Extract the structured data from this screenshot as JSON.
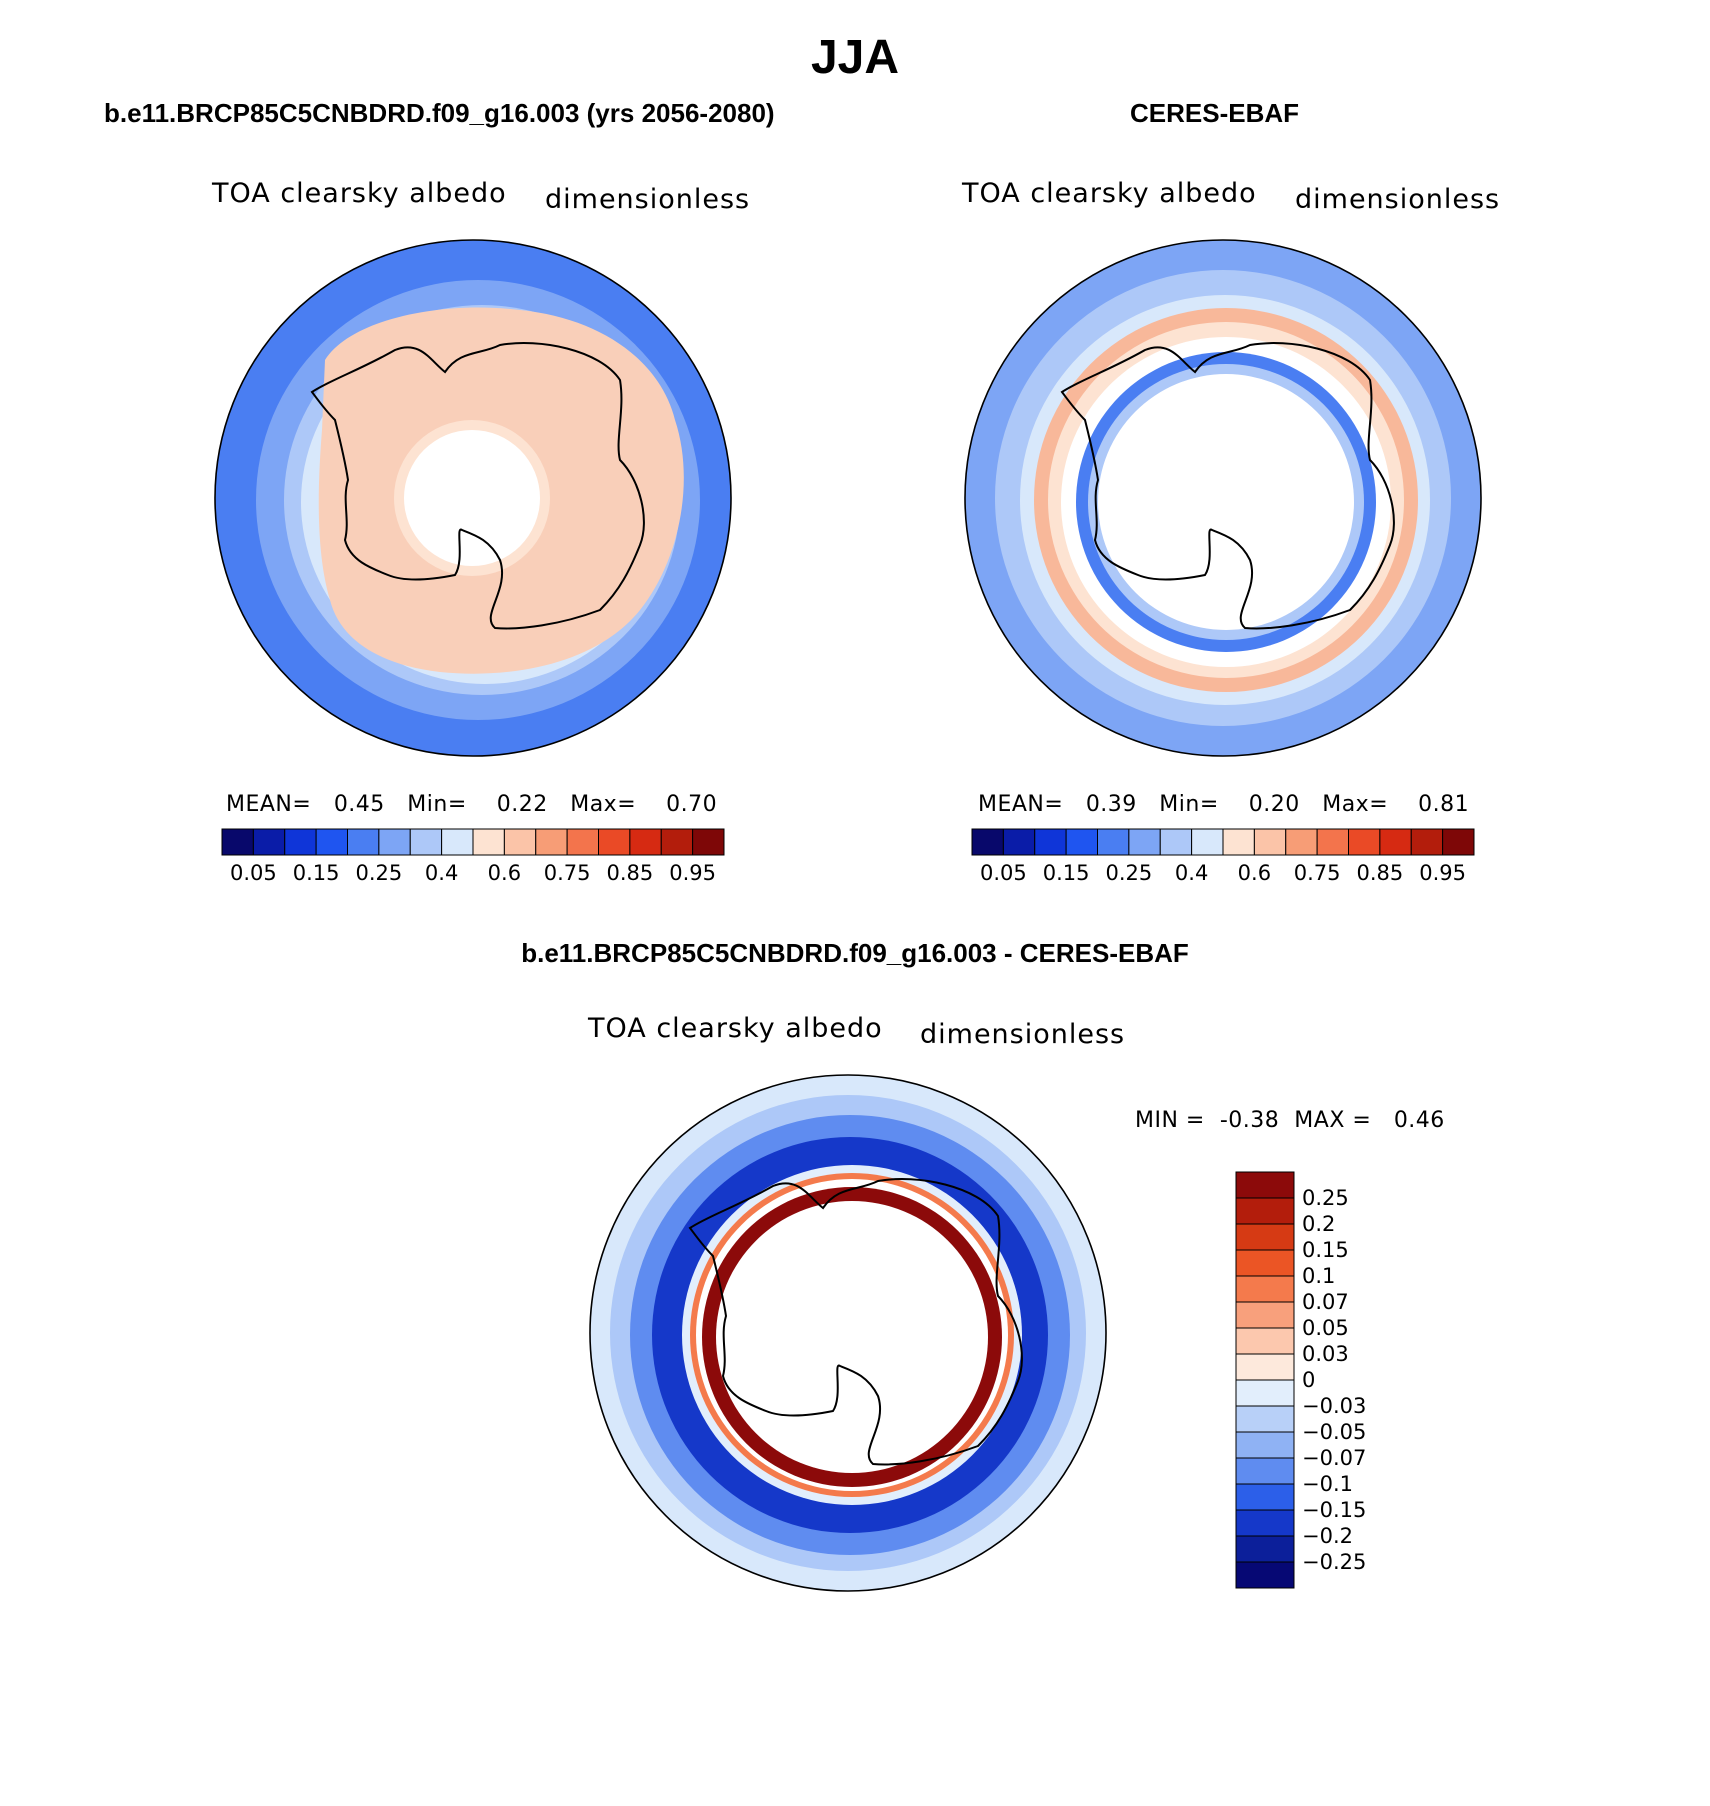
{
  "figure_title": "JJA",
  "panels": [
    {
      "title": "b.e11.BRCP85C5CNBDRD.f09_g16.003 (yrs 2056-2080)",
      "variable": "TOA clearsky albedo",
      "units": "dimensionless",
      "stats": {
        "mean_label": "MEAN=",
        "mean": "0.45",
        "min_label": "Min=",
        "min": "0.22",
        "max_label": "Max=",
        "max": "0.70"
      }
    },
    {
      "title": "CERES-EBAF",
      "variable": "TOA clearsky albedo",
      "units": "dimensionless",
      "stats": {
        "mean_label": "MEAN=",
        "mean": "0.39",
        "min_label": "Min=",
        "min": "0.20",
        "max_label": "Max=",
        "max": "0.81"
      }
    },
    {
      "title": "b.e11.BRCP85C5CNBDRD.f09_g16.003 - CERES-EBAF",
      "variable": "TOA clearsky albedo",
      "units": "dimensionless",
      "stats": {
        "min_label": "MIN =",
        "min": "-0.38",
        "max_label": "MAX =",
        "max": "0.46"
      }
    }
  ],
  "colorbar_abs": {
    "labels": [
      "0.05",
      "0.15",
      "0.25",
      "0.4",
      "0.6",
      "0.75",
      "0.85",
      "0.95"
    ],
    "colors": [
      "#08086b",
      "#0a1ca8",
      "#0f35d8",
      "#1f55f0",
      "#4a7ef2",
      "#7da5f5",
      "#adc8f8",
      "#d8e8fb",
      "#fde3d2",
      "#fbc4a8",
      "#f79d76",
      "#f3744c",
      "#ea4a26",
      "#d62a12",
      "#b31d0c",
      "#7e0707"
    ]
  },
  "colorbar_diff": {
    "labels": [
      "0.25",
      "0.2",
      "0.15",
      "0.1",
      "0.07",
      "0.05",
      "0.03",
      "0",
      "−0.03",
      "−0.05",
      "−0.07",
      "−0.1",
      "−0.15",
      "−0.2",
      "−0.25"
    ],
    "colors": [
      "#8c0a0a",
      "#b31d0c",
      "#d63a14",
      "#eb5525",
      "#f47a4c",
      "#f8a07c",
      "#fcc8ae",
      "#fde9dc",
      "#e2eefc",
      "#b8d0f8",
      "#8fb2f4",
      "#5f8cf0",
      "#2c5fe9",
      "#1538c9",
      "#0c1f9a",
      "#060874"
    ]
  },
  "map_colors": {
    "ocean_outer": "#4a7ef2",
    "ocean_mid": "#7da5f5",
    "ocean_light": "#adc8f8",
    "ice": "#f9cfb9",
    "ice_pale": "#fde3d2",
    "white": "#ffffff",
    "diff_red": "#8c0a0a",
    "diff_blue": "#1538c9"
  }
}
